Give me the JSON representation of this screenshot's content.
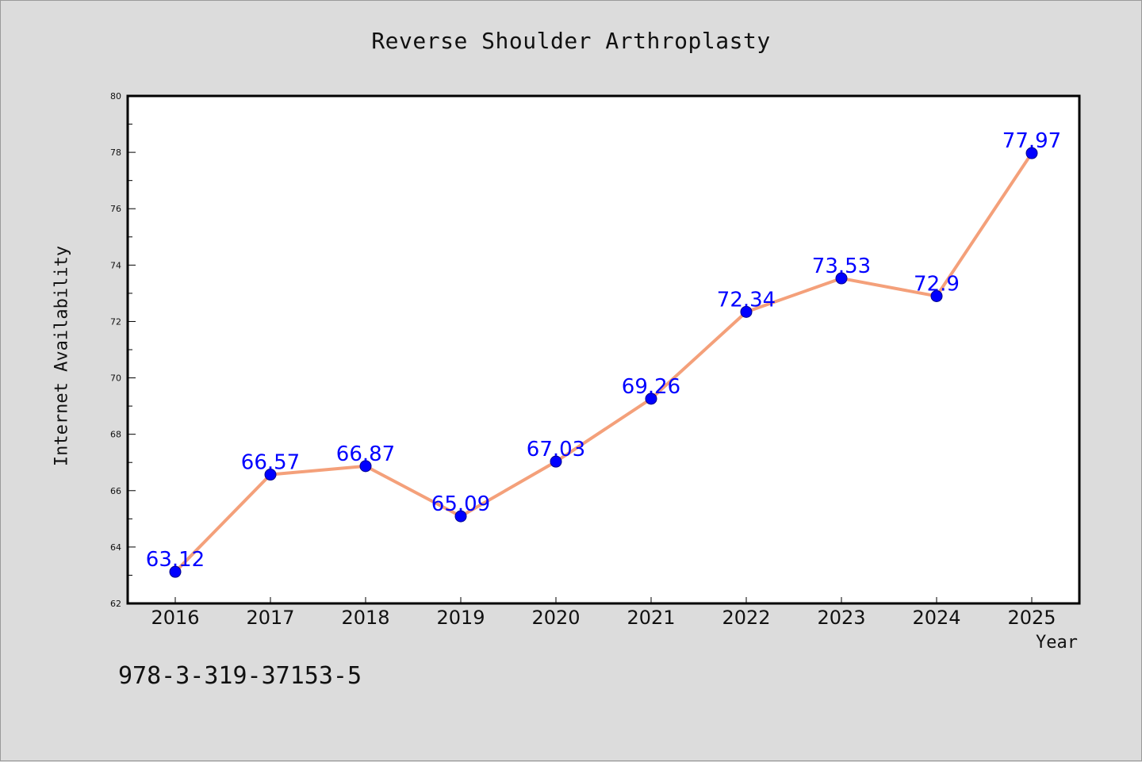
{
  "chart_data": {
    "type": "line",
    "title": "Reverse Shoulder Arthroplasty",
    "xlabel": "Year",
    "ylabel": "Internet Availability",
    "categories": [
      "2016",
      "2017",
      "2018",
      "2019",
      "2020",
      "2021",
      "2022",
      "2023",
      "2024",
      "2025"
    ],
    "series": [
      {
        "values": [
          63.12,
          66.57,
          66.87,
          65.09,
          67.03,
          69.26,
          72.34,
          73.53,
          72.9,
          77.97
        ]
      }
    ],
    "data_labels": [
      "63.12",
      "66.57",
      "66.87",
      "65.09",
      "67.03",
      "69.26",
      "72.34",
      "73.53",
      "72.9",
      "77.97"
    ],
    "ylim": [
      62,
      80
    ],
    "yticks": [
      "62",
      "64",
      "66",
      "68",
      "70",
      "72",
      "74",
      "76",
      "78",
      "80"
    ],
    "grid": false,
    "legend": "none",
    "colors": {
      "line": "#f4a07a",
      "marker": "#0000ff",
      "labels": "#0000ff",
      "background": "#dcdcdc",
      "plot_bg": "#ffffff"
    }
  },
  "footer": {
    "id": "978-3-319-37153-5"
  }
}
